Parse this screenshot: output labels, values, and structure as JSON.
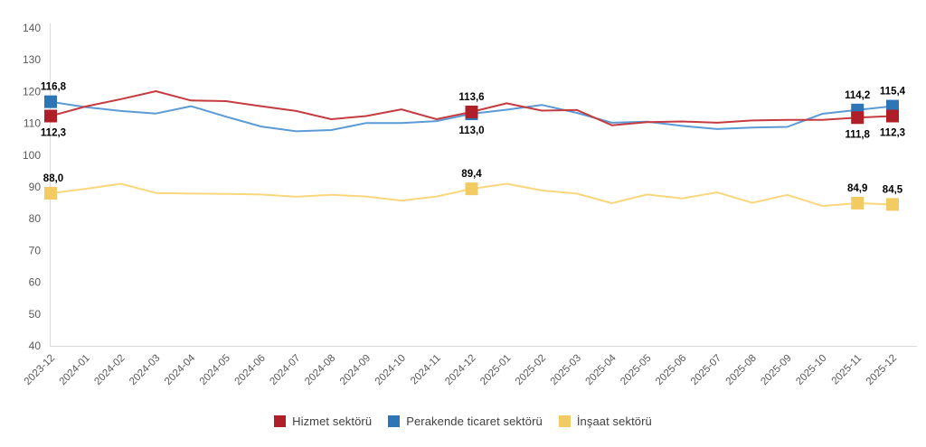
{
  "chart_data": {
    "type": "line",
    "title": "",
    "xlabel": "",
    "ylabel": "",
    "grid": "off",
    "legend_position": "bottom",
    "y_axis": {
      "min": 40,
      "max": 140,
      "step": 10
    },
    "categories": [
      "2023-12",
      "2024-01",
      "2024-02",
      "2024-03",
      "2024-04",
      "2024-05",
      "2024-06",
      "2024-07",
      "2024-08",
      "2024-09",
      "2024-10",
      "2024-11",
      "2024-12",
      "2025-01",
      "2025-02",
      "2025-03",
      "2025-04",
      "2025-05",
      "2025-06",
      "2025-07",
      "2025-08",
      "2025-09",
      "2025-10",
      "2025-11",
      "2025-12"
    ],
    "series": [
      {
        "name": "Hizmet sektörü",
        "line_color": "#C53B40",
        "marker_color": "#B01F27",
        "values": [
          112.3,
          115.3,
          117.6,
          120.1,
          117.2,
          117.0,
          115.4,
          113.9,
          111.3,
          112.3,
          114.4,
          111.3,
          113.6,
          116.3,
          114.0,
          114.2,
          109.4,
          110.4,
          110.6,
          110.2,
          110.9,
          111.1,
          111.1,
          111.8,
          112.3
        ],
        "labeled_points": [
          {
            "index": 0,
            "label": "112,3",
            "position": "below"
          },
          {
            "index": 12,
            "label": "113,6",
            "position": "above"
          },
          {
            "index": 23,
            "label": "111,8",
            "position": "below"
          },
          {
            "index": 24,
            "label": "112,3",
            "position": "below"
          }
        ]
      },
      {
        "name": "Perakende ticaret sektörü",
        "line_color": "#5B9BD5",
        "marker_color": "#2E75B6",
        "values": [
          116.8,
          115.1,
          113.9,
          113.1,
          115.4,
          112.1,
          109.0,
          107.5,
          107.9,
          110.1,
          110.1,
          110.7,
          113.0,
          114.3,
          115.8,
          113.3,
          110.2,
          110.5,
          109.2,
          108.2,
          108.7,
          108.9,
          113.0,
          114.2,
          115.4
        ],
        "labeled_points": [
          {
            "index": 0,
            "label": "116,8",
            "position": "above"
          },
          {
            "index": 12,
            "label": "113,0",
            "position": "below"
          },
          {
            "index": 23,
            "label": "114,2",
            "position": "above"
          },
          {
            "index": 24,
            "label": "115,4",
            "position": "above"
          }
        ]
      },
      {
        "name": "İnşaat sektörü",
        "line_color": "#FAD77C",
        "marker_color": "#F3CB63",
        "values": [
          88.0,
          89.4,
          91.0,
          88.1,
          87.9,
          87.8,
          87.6,
          86.9,
          87.5,
          87.0,
          85.7,
          87.0,
          89.4,
          91.0,
          88.9,
          87.9,
          84.9,
          87.6,
          86.4,
          88.3,
          85.0,
          87.5,
          84.0,
          84.9,
          84.5
        ],
        "labeled_points": [
          {
            "index": 0,
            "label": "88,0",
            "position": "above"
          },
          {
            "index": 12,
            "label": "89,4",
            "position": "above"
          },
          {
            "index": 23,
            "label": "84,9",
            "position": "above"
          },
          {
            "index": 24,
            "label": "84,5",
            "position": "above"
          }
        ]
      }
    ]
  },
  "styles": {
    "axis_line_color": "#D9D9D9",
    "tick_label_color": "#595959",
    "data_label_color": "#000000",
    "background": "#FFFFFF"
  }
}
